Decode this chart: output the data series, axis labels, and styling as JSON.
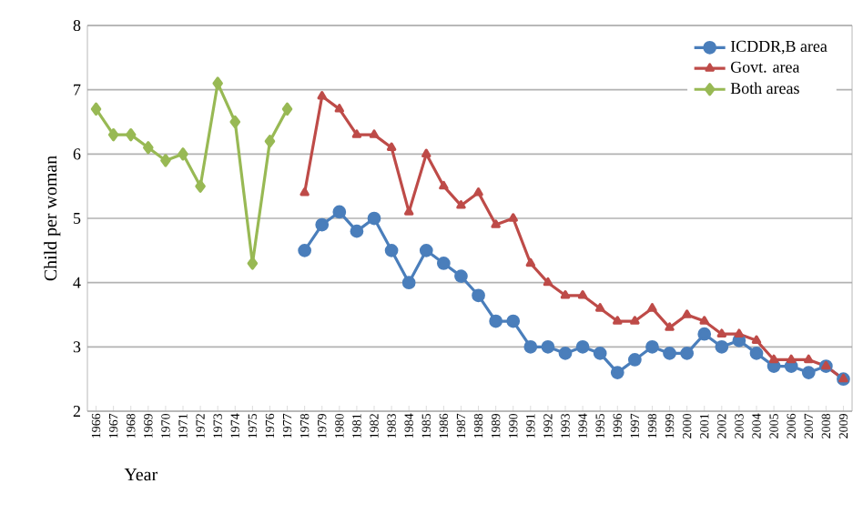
{
  "chart_data": {
    "type": "line",
    "xlabel": "Year",
    "ylabel": "Child per woman",
    "categories": [
      "1966",
      "1967",
      "1968",
      "1969",
      "1970",
      "1971",
      "1972",
      "1973",
      "1974",
      "1975",
      "1976",
      "1977",
      "1978",
      "1979",
      "1980",
      "1981",
      "1982",
      "1983",
      "1984",
      "1985",
      "1986",
      "1987",
      "1988",
      "1989",
      "1990",
      "1991",
      "1992",
      "1993",
      "1994",
      "1995",
      "1996",
      "1997",
      "1998",
      "1999",
      "2000",
      "2001",
      "2002",
      "2003",
      "2004",
      "2005",
      "2006",
      "2007",
      "2008",
      "2009"
    ],
    "series": [
      {
        "name": "ICDDR,B area",
        "color": "#4a7ebb",
        "marker": "circle",
        "values": [
          null,
          null,
          null,
          null,
          null,
          null,
          null,
          null,
          null,
          null,
          null,
          null,
          4.5,
          4.9,
          5.1,
          4.8,
          5.0,
          4.5,
          4.0,
          4.5,
          4.3,
          4.1,
          3.8,
          3.4,
          3.4,
          3.0,
          3.0,
          2.9,
          3.0,
          2.9,
          2.6,
          2.8,
          3.0,
          2.9,
          2.9,
          3.2,
          3.0,
          3.1,
          2.9,
          2.7,
          2.7,
          2.6,
          2.7,
          2.5
        ]
      },
      {
        "name": "Govt. area",
        "color": "#be4b48",
        "marker": "triangle",
        "values": [
          null,
          null,
          null,
          null,
          null,
          null,
          null,
          null,
          null,
          null,
          null,
          null,
          5.4,
          6.9,
          6.7,
          6.3,
          6.3,
          6.1,
          5.1,
          6.0,
          5.5,
          5.2,
          5.4,
          4.9,
          5.0,
          4.3,
          4.0,
          3.8,
          3.8,
          3.6,
          3.4,
          3.4,
          3.6,
          3.3,
          3.5,
          3.4,
          3.2,
          3.2,
          3.1,
          2.8,
          2.8,
          2.8,
          2.7,
          2.5
        ]
      },
      {
        "name": "Both areas",
        "color": "#98b954",
        "marker": "diamond",
        "values": [
          6.7,
          6.3,
          6.3,
          6.1,
          5.9,
          6.0,
          5.5,
          7.1,
          6.5,
          4.3,
          6.2,
          6.7,
          null,
          null,
          null,
          null,
          null,
          null,
          null,
          null,
          null,
          null,
          null,
          null,
          null,
          null,
          null,
          null,
          null,
          null,
          null,
          null,
          null,
          null,
          null,
          null,
          null,
          null,
          null,
          null,
          null,
          null,
          null,
          null
        ]
      }
    ],
    "ylim": [
      2,
      8
    ],
    "yticks": [
      2,
      3,
      4,
      5,
      6,
      7,
      8
    ],
    "grid": "y",
    "legend": "top right"
  }
}
